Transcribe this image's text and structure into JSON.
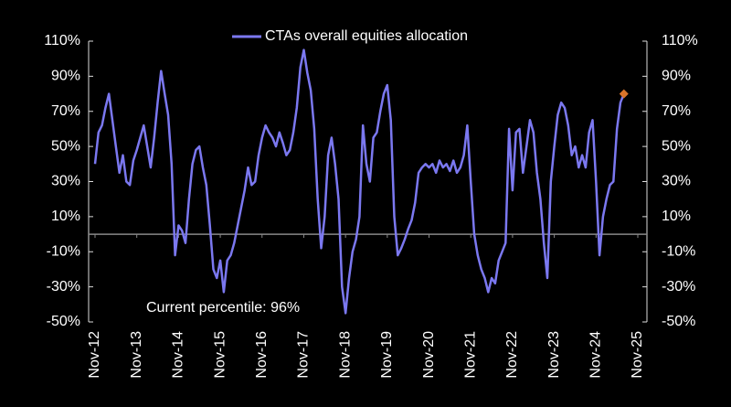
{
  "chart_data": {
    "type": "line",
    "x": [
      "Nov-12",
      "Dec-12",
      "Jan-13",
      "Feb-13",
      "Mar-13",
      "Apr-13",
      "May-13",
      "Jun-13",
      "Jul-13",
      "Aug-13",
      "Sep-13",
      "Oct-13",
      "Nov-13",
      "Dec-13",
      "Jan-14",
      "Feb-14",
      "Mar-14",
      "Apr-14",
      "May-14",
      "Jun-14",
      "Jul-14",
      "Aug-14",
      "Sep-14",
      "Oct-14",
      "Nov-14",
      "Dec-14",
      "Jan-15",
      "Feb-15",
      "Mar-15",
      "Apr-15",
      "May-15",
      "Jun-15",
      "Jul-15",
      "Aug-15",
      "Sep-15",
      "Oct-15",
      "Nov-15",
      "Dec-15",
      "Jan-16",
      "Feb-16",
      "Mar-16",
      "Apr-16",
      "May-16",
      "Jun-16",
      "Jul-16",
      "Aug-16",
      "Sep-16",
      "Oct-16",
      "Nov-16",
      "Dec-16",
      "Jan-17",
      "Feb-17",
      "Mar-17",
      "Apr-17",
      "May-17",
      "Jun-17",
      "Jul-17",
      "Aug-17",
      "Sep-17",
      "Oct-17",
      "Nov-17",
      "Dec-17",
      "Jan-18",
      "Feb-18",
      "Mar-18",
      "Apr-18",
      "May-18",
      "Jun-18",
      "Jul-18",
      "Aug-18",
      "Sep-18",
      "Oct-18",
      "Nov-18",
      "Dec-18",
      "Jan-19",
      "Feb-19",
      "Mar-19",
      "Apr-19",
      "May-19",
      "Jun-19",
      "Jul-19",
      "Aug-19",
      "Sep-19",
      "Oct-19",
      "Nov-19",
      "Dec-19",
      "Jan-20",
      "Feb-20",
      "Mar-20",
      "Apr-20",
      "May-20",
      "Jun-20",
      "Jul-20",
      "Aug-20",
      "Sep-20",
      "Oct-20",
      "Nov-20",
      "Dec-20",
      "Jan-21",
      "Feb-21",
      "Mar-21",
      "Apr-21",
      "May-21",
      "Jun-21",
      "Jul-21",
      "Aug-21",
      "Sep-21",
      "Oct-21",
      "Nov-21",
      "Dec-21",
      "Jan-22",
      "Feb-22",
      "Mar-22",
      "Apr-22",
      "May-22",
      "Jun-22",
      "Jul-22",
      "Aug-22",
      "Sep-22",
      "Oct-22",
      "Nov-22",
      "Dec-22",
      "Jan-23",
      "Feb-23",
      "Mar-23",
      "Apr-23",
      "May-23",
      "Jun-23",
      "Jul-23",
      "Aug-23",
      "Sep-23",
      "Oct-23",
      "Nov-23",
      "Dec-23",
      "Jan-24",
      "Feb-24",
      "Mar-24",
      "Apr-24",
      "May-24",
      "Jun-24",
      "Jul-24",
      "Aug-24",
      "Sep-24",
      "Oct-24",
      "Nov-24",
      "Dec-24",
      "Jan-25",
      "Feb-25",
      "Mar-25",
      "Apr-25",
      "May-25",
      "Jun-25",
      "Jul-25"
    ],
    "series": [
      {
        "name": "CTAs overall equities allocation",
        "color": "#7b78f0",
        "values": [
          40,
          58,
          62,
          72,
          80,
          65,
          50,
          35,
          45,
          30,
          28,
          42,
          48,
          55,
          62,
          50,
          38,
          55,
          75,
          93,
          80,
          68,
          40,
          -12,
          5,
          2,
          -5,
          20,
          40,
          48,
          50,
          38,
          28,
          5,
          -20,
          -25,
          -15,
          -33,
          -15,
          -12,
          -5,
          5,
          15,
          25,
          38,
          28,
          30,
          45,
          55,
          62,
          58,
          55,
          50,
          58,
          52,
          45,
          48,
          58,
          72,
          95,
          105,
          92,
          82,
          60,
          20,
          -8,
          10,
          45,
          55,
          40,
          20,
          -30,
          -45,
          -25,
          -10,
          -3,
          10,
          62,
          40,
          30,
          55,
          58,
          70,
          80,
          85,
          65,
          10,
          -12,
          -8,
          -3,
          3,
          8,
          18,
          35,
          38,
          40,
          38,
          40,
          35,
          42,
          38,
          40,
          36,
          42,
          35,
          38,
          45,
          62,
          30,
          0,
          -12,
          -20,
          -25,
          -33,
          -25,
          -28,
          -15,
          -10,
          -5,
          60,
          25,
          58,
          60,
          35,
          50,
          65,
          58,
          35,
          20,
          -5,
          -25,
          30,
          50,
          68,
          75,
          72,
          62,
          45,
          50,
          38,
          45,
          38,
          58,
          65,
          30,
          -12,
          10,
          20,
          28,
          30,
          60,
          75,
          80
        ]
      }
    ],
    "highlight": {
      "x": "Jul-25",
      "value": 80,
      "color": "#d9742a"
    },
    "annotation": "Current percentile: 96%",
    "xlim": [
      "Nov-12",
      "Nov-25"
    ],
    "xticks": [
      "Nov-12",
      "Nov-13",
      "Nov-14",
      "Nov-15",
      "Nov-16",
      "Nov-17",
      "Nov-18",
      "Nov-19",
      "Nov-20",
      "Nov-21",
      "Nov-22",
      "Nov-23",
      "Nov-24",
      "Nov-25"
    ],
    "ylim": [
      -50,
      110
    ],
    "yticks": [
      {
        "value": 110,
        "label": "110%"
      },
      {
        "value": 90,
        "label": "90%"
      },
      {
        "value": 70,
        "label": "70%"
      },
      {
        "value": 50,
        "label": "50%"
      },
      {
        "value": 30,
        "label": "30%"
      },
      {
        "value": 10,
        "label": "10%"
      },
      {
        "value": -10,
        "label": "-10%"
      },
      {
        "value": -30,
        "label": "-30%"
      },
      {
        "value": -50,
        "label": "-50%"
      }
    ],
    "y2lim": [
      -50,
      110
    ],
    "y2ticks": [
      {
        "value": 110,
        "label": "110%"
      },
      {
        "value": 90,
        "label": "90%"
      },
      {
        "value": 70,
        "label": "70%"
      },
      {
        "value": 50,
        "label": "50%"
      },
      {
        "value": 30,
        "label": "30%"
      },
      {
        "value": 10,
        "label": "10%"
      },
      {
        "value": -10,
        "label": "-10%"
      },
      {
        "value": -30,
        "label": "-30%"
      },
      {
        "value": -50,
        "label": "-50%"
      }
    ]
  }
}
